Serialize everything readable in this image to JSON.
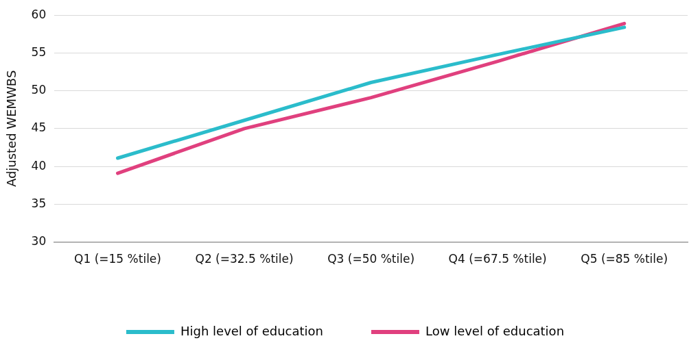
{
  "chart_data": {
    "type": "line",
    "ylabel": "Adjusted WEMWBS",
    "categories": [
      "Q1 (=15 %tile)",
      "Q2 (=32.5 %tile)",
      "Q3 (=50 %tile)",
      "Q4 (=67.5 %tile)",
      "Q5 (=85 %tile)"
    ],
    "series": [
      {
        "name": "High level of education",
        "color": "#2bbccb",
        "values": [
          41.1,
          46.1,
          51.1,
          54.8,
          58.4
        ]
      },
      {
        "name": "Low level of education",
        "color": "#e0407e",
        "values": [
          39.1,
          45.0,
          49.1,
          53.9,
          58.9
        ]
      }
    ],
    "ylim": [
      30,
      60
    ],
    "yticks": [
      30,
      35,
      40,
      45,
      50,
      55,
      60
    ],
    "grid": "y",
    "legend": "bottom",
    "marker": "none",
    "line_style": "solid"
  }
}
